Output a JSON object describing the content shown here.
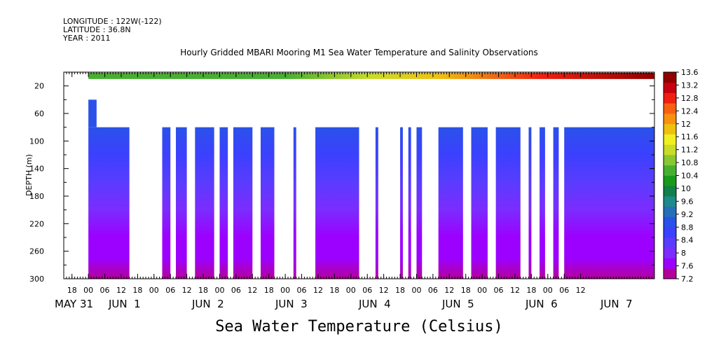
{
  "header": {
    "longitude": "LONGITUDE : 122W(-122)",
    "latitude": "LATITUDE : 36.8N",
    "year": "YEAR : 2011"
  },
  "chart_data": {
    "type": "heatmap",
    "title": "Hourly Gridded MBARI Mooring M1 Sea Water Temperature and Salinity Observations",
    "footer_label": "Sea Water Temperature (Celsius)",
    "ylabel": "DEPTH (m)",
    "y_axis": {
      "range": [
        300,
        0
      ],
      "ticks": [
        20,
        60,
        100,
        140,
        180,
        220,
        260,
        300
      ],
      "orientation": "depth increasing downward"
    },
    "x_axis": {
      "range_hours": [
        -9,
        207
      ],
      "hour_tick_labels": [
        "18",
        "00",
        "06",
        "12",
        "18",
        "00",
        "06",
        "12",
        "18",
        "00",
        "06",
        "12",
        "18",
        "00",
        "06",
        "12",
        "18",
        "00",
        "06",
        "12",
        "18",
        "00",
        "06",
        "12",
        "18",
        "00",
        "06",
        "12",
        "18",
        "00",
        "06",
        "12"
      ],
      "day_labels": [
        "MAY 31",
        "JUN  1",
        "JUN  2",
        "JUN  3",
        "JUN  4",
        "JUN  5",
        "JUN  6",
        "JUN  7"
      ]
    },
    "colorbar": {
      "ticks": [
        13.6,
        13.2,
        12.8,
        12.4,
        12,
        11.6,
        11.2,
        10.8,
        10.4,
        10,
        9.6,
        9.2,
        8.8,
        8.4,
        8,
        7.6,
        7.2
      ],
      "range": [
        7.2,
        13.6
      ],
      "colors": [
        "#b4009b",
        "#9c00ff",
        "#7b2cff",
        "#5a3cff",
        "#3c40ff",
        "#2a52e8",
        "#276fb8",
        "#1e8a8a",
        "#128048",
        "#1a9a1a",
        "#48b030",
        "#88c830",
        "#c8dc28",
        "#f0f020",
        "#f0c010",
        "#f89010",
        "#f86010",
        "#f02010",
        "#c80010",
        "#900000"
      ]
    },
    "surface_sensor": {
      "depth_range_m": [
        1,
        10
      ],
      "temperature_c": {
        "start": 10.4,
        "mid_warm_peak": 11.2,
        "end": 13.4
      }
    },
    "upper_sensor": {
      "depth_m": 40,
      "present_hours": [
        0,
        3
      ],
      "temperature_c": 9.0
    },
    "profile_depth_range_m": [
      80,
      300
    ],
    "data_blocks_hours": [
      [
        0,
        15
      ],
      [
        27,
        30
      ],
      [
        32,
        36
      ],
      [
        39,
        46
      ],
      [
        48,
        51
      ],
      [
        53,
        60
      ],
      [
        63,
        68
      ],
      [
        75,
        76
      ],
      [
        83,
        99
      ],
      [
        105,
        106
      ],
      [
        114,
        115
      ],
      [
        117,
        118
      ],
      [
        120,
        122
      ],
      [
        128,
        137
      ],
      [
        140,
        146
      ],
      [
        149,
        158
      ],
      [
        161,
        162
      ],
      [
        165,
        167
      ],
      [
        170,
        172
      ],
      [
        174,
        207
      ]
    ],
    "temperature_profile_c": [
      {
        "depth": 80,
        "value": 9.1
      },
      {
        "depth": 120,
        "value": 8.6
      },
      {
        "depth": 160,
        "value": 8.2
      },
      {
        "depth": 200,
        "value": 7.95
      },
      {
        "depth": 240,
        "value": 7.75
      },
      {
        "depth": 270,
        "value": 7.55
      },
      {
        "depth": 300,
        "value": 7.4
      }
    ]
  }
}
